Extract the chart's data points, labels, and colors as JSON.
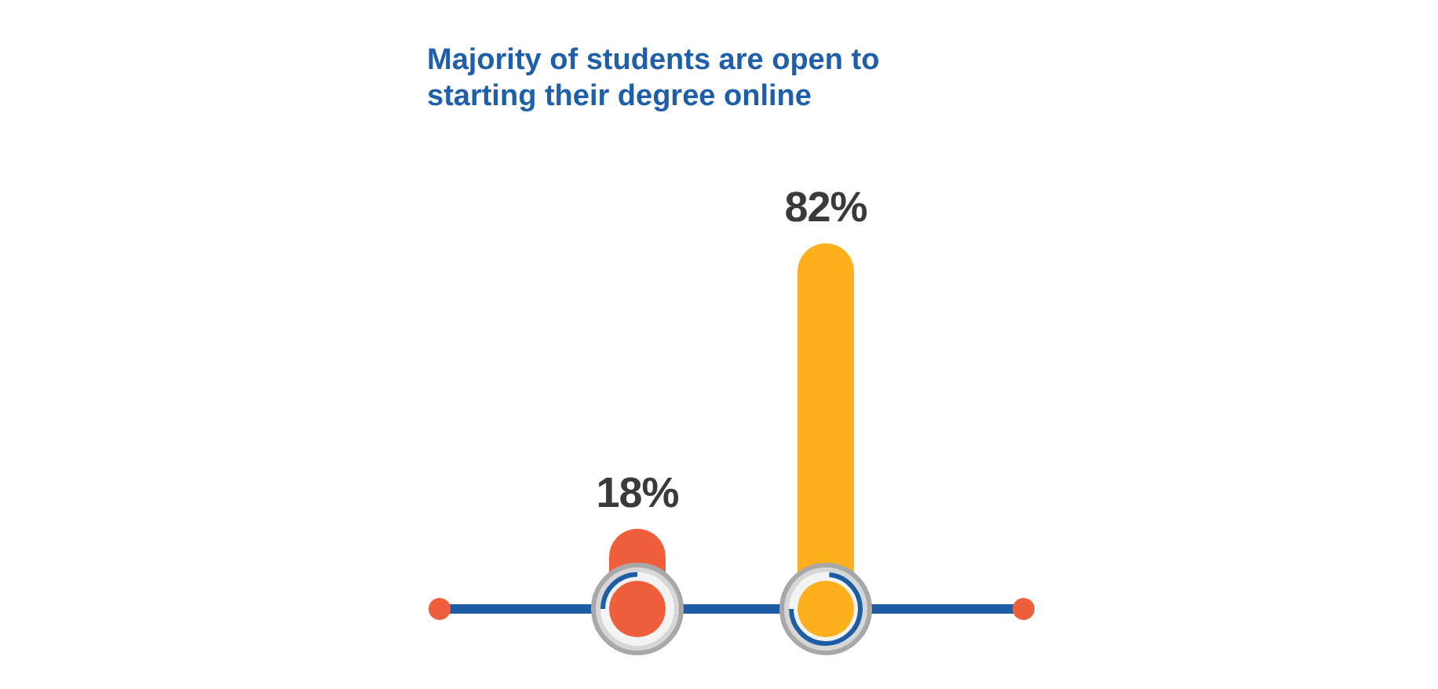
{
  "chart_data": {
    "type": "bar",
    "title": "Majority of students are open to starting their degree online",
    "categories": [
      null,
      null
    ],
    "values": [
      18,
      82
    ],
    "colors": [
      "#ef5f3b",
      "#fdb01c"
    ],
    "value_labels": [
      "18%",
      "82%"
    ]
  }
}
